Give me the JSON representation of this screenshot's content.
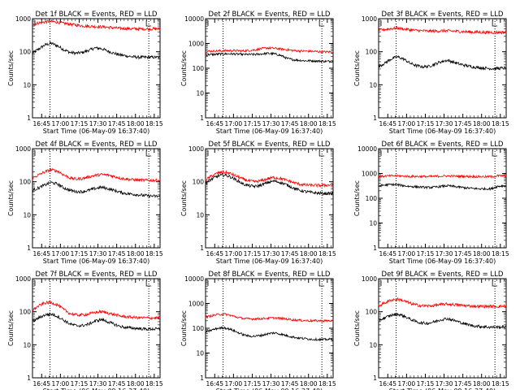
{
  "chart_data": {
    "type": "line",
    "xlabel": "Start Time (06-May-09 16:37:40)",
    "ylabel": "Counts/sec",
    "x_tick_labels": [
      "16:45",
      "17:00",
      "17:15",
      "17:30",
      "17:45",
      "18:00",
      "18:15"
    ],
    "x_tick_minutes": [
      7.33,
      22.33,
      37.33,
      52.33,
      67.33,
      82.33,
      97.33
    ],
    "xlim_minutes": [
      0,
      102
    ],
    "vertical_markers_minutes": [
      14,
      93
    ],
    "series_colors": {
      "Events": "#000000",
      "LLD": "#ff0000"
    },
    "panels": [
      {
        "title": "Det 1f BLACK = Events, RED = LLD",
        "y_tick_labels": [
          "1",
          "10",
          "100",
          "1000"
        ],
        "ylim": [
          1,
          1000
        ],
        "series": [
          {
            "name": "Events",
            "color": "#000000",
            "minutes": [
              0,
              5,
              10,
              15,
              20,
              25,
              30,
              35,
              40,
              45,
              50,
              55,
              60,
              65,
              70,
              75,
              80,
              85,
              90,
              95,
              100
            ],
            "values": [
              90,
              120,
              160,
              180,
              150,
              115,
              95,
              90,
              95,
              110,
              130,
              125,
              105,
              90,
              80,
              75,
              70,
              68,
              68,
              68,
              68
            ]
          },
          {
            "name": "LLD",
            "color": "#ff0000",
            "minutes": [
              0,
              5,
              10,
              15,
              20,
              25,
              30,
              35,
              40,
              45,
              50,
              55,
              60,
              65,
              70,
              75,
              80,
              85,
              90,
              95,
              100
            ],
            "values": [
              680,
              740,
              800,
              820,
              780,
              720,
              680,
              640,
              610,
              590,
              580,
              570,
              550,
              530,
              510,
              500,
              495,
              490,
              490,
              490,
              490
            ]
          }
        ]
      },
      {
        "title": "Det 2f BLACK = Events, RED = LLD",
        "y_tick_labels": [
          "1",
          "10",
          "100",
          "1000",
          "10000"
        ],
        "ylim": [
          1,
          10000
        ],
        "series": [
          {
            "name": "Events",
            "color": "#000000",
            "minutes": [
              0,
              5,
              10,
              15,
              20,
              25,
              30,
              35,
              40,
              45,
              50,
              55,
              60,
              65,
              70,
              75,
              80,
              85,
              90,
              95,
              100
            ],
            "values": [
              350,
              360,
              370,
              380,
              380,
              370,
              360,
              360,
              360,
              380,
              400,
              380,
              330,
              250,
              220,
              210,
              200,
              200,
              195,
              190,
              190
            ]
          },
          {
            "name": "LLD",
            "color": "#ff0000",
            "minutes": [
              0,
              5,
              10,
              15,
              20,
              25,
              30,
              35,
              40,
              45,
              50,
              55,
              60,
              65,
              70,
              75,
              80,
              85,
              90,
              95,
              100
            ],
            "values": [
              480,
              490,
              500,
              510,
              520,
              510,
              500,
              520,
              560,
              620,
              660,
              640,
              600,
              560,
              520,
              500,
              490,
              480,
              470,
              460,
              455
            ]
          }
        ]
      },
      {
        "title": "Det 3f BLACK = Events, RED = LLD",
        "y_tick_labels": [
          "1",
          "10",
          "100",
          "1000"
        ],
        "ylim": [
          1,
          1000
        ],
        "series": [
          {
            "name": "Events",
            "color": "#000000",
            "minutes": [
              0,
              5,
              10,
              15,
              20,
              25,
              30,
              35,
              40,
              45,
              50,
              55,
              60,
              65,
              70,
              75,
              80,
              85,
              90,
              95,
              100
            ],
            "values": [
              35,
              45,
              60,
              70,
              60,
              45,
              38,
              35,
              36,
              42,
              50,
              55,
              48,
              42,
              38,
              35,
              33,
              32,
              31,
              31,
              32
            ]
          },
          {
            "name": "LLD",
            "color": "#ff0000",
            "minutes": [
              0,
              5,
              10,
              15,
              20,
              25,
              30,
              35,
              40,
              45,
              50,
              55,
              60,
              65,
              70,
              75,
              80,
              85,
              90,
              95,
              100
            ],
            "values": [
              450,
              470,
              500,
              520,
              490,
              460,
              440,
              430,
              420,
              420,
              425,
              430,
              420,
              410,
              400,
              395,
              390,
              385,
              385,
              385,
              385
            ]
          }
        ]
      },
      {
        "title": "Det 4f BLACK = Events, RED = LLD",
        "y_tick_labels": [
          "1",
          "10",
          "100",
          "1000"
        ],
        "ylim": [
          1,
          1000
        ],
        "series": [
          {
            "name": "Events",
            "color": "#000000",
            "minutes": [
              0,
              5,
              10,
              15,
              20,
              25,
              30,
              35,
              40,
              45,
              50,
              55,
              60,
              65,
              70,
              75,
              80,
              85,
              90,
              95,
              100
            ],
            "values": [
              55,
              65,
              80,
              95,
              85,
              65,
              55,
              50,
              50,
              55,
              62,
              68,
              62,
              55,
              48,
              44,
              42,
              40,
              38,
              37,
              36
            ]
          },
          {
            "name": "LLD",
            "color": "#ff0000",
            "minutes": [
              0,
              5,
              10,
              15,
              20,
              25,
              30,
              35,
              40,
              45,
              50,
              55,
              60,
              65,
              70,
              75,
              80,
              85,
              90,
              95,
              100
            ],
            "values": [
              130,
              160,
              200,
              230,
              210,
              160,
              130,
              120,
              125,
              140,
              155,
              165,
              160,
              145,
              130,
              120,
              115,
              112,
              110,
              110,
              110
            ]
          }
        ]
      },
      {
        "title": "Det 5f BLACK = Events, RED = LLD",
        "y_tick_labels": [
          "1",
          "10",
          "100",
          "1000"
        ],
        "ylim": [
          1,
          1000
        ],
        "series": [
          {
            "name": "Events",
            "color": "#000000",
            "minutes": [
              0,
              5,
              10,
              15,
              20,
              25,
              30,
              35,
              40,
              45,
              50,
              55,
              60,
              65,
              70,
              75,
              80,
              85,
              90,
              95,
              100
            ],
            "values": [
              90,
              120,
              150,
              160,
              140,
              110,
              85,
              75,
              72,
              80,
              95,
              105,
              95,
              80,
              65,
              55,
              50,
              47,
              45,
              44,
              44
            ]
          },
          {
            "name": "LLD",
            "color": "#ff0000",
            "minutes": [
              0,
              5,
              10,
              15,
              20,
              25,
              30,
              35,
              40,
              45,
              50,
              55,
              60,
              65,
              70,
              75,
              80,
              85,
              90,
              95,
              100
            ],
            "values": [
              110,
              150,
              185,
              195,
              175,
              145,
              120,
              105,
              100,
              108,
              125,
              135,
              125,
              110,
              95,
              85,
              80,
              78,
              77,
              78,
              80
            ]
          }
        ]
      },
      {
        "title": "Det 6f BLACK = Events, RED = LLD",
        "y_tick_labels": [
          "1",
          "10",
          "100",
          "1000",
          "10000"
        ],
        "ylim": [
          1,
          10000
        ],
        "series": [
          {
            "name": "Events",
            "color": "#000000",
            "minutes": [
              0,
              5,
              10,
              15,
              20,
              25,
              30,
              35,
              40,
              45,
              50,
              55,
              60,
              65,
              70,
              75,
              80,
              85,
              90,
              95,
              100
            ],
            "values": [
              320,
              340,
              360,
              350,
              320,
              300,
              290,
              280,
              270,
              280,
              300,
              320,
              300,
              280,
              260,
              250,
              240,
              240,
              240,
              300,
              320
            ]
          },
          {
            "name": "LLD",
            "color": "#ff0000",
            "minutes": [
              0,
              5,
              10,
              15,
              20,
              25,
              30,
              35,
              40,
              45,
              50,
              55,
              60,
              65,
              70,
              75,
              80,
              85,
              90,
              95,
              100
            ],
            "values": [
              750,
              780,
              800,
              800,
              780,
              760,
              760,
              750,
              750,
              760,
              780,
              790,
              780,
              770,
              760,
              750,
              745,
              740,
              740,
              800,
              820
            ]
          }
        ]
      },
      {
        "title": "Det 7f BLACK = Events, RED = LLD",
        "y_tick_labels": [
          "1",
          "10",
          "100",
          "1000"
        ],
        "ylim": [
          1,
          1000
        ],
        "series": [
          {
            "name": "Events",
            "color": "#000000",
            "minutes": [
              0,
              5,
              10,
              15,
              20,
              25,
              30,
              35,
              40,
              45,
              50,
              55,
              60,
              65,
              70,
              75,
              80,
              85,
              90,
              95,
              100
            ],
            "values": [
              50,
              65,
              80,
              85,
              72,
              55,
              42,
              38,
              38,
              42,
              52,
              58,
              50,
              42,
              36,
              33,
              32,
              31,
              30,
              30,
              30
            ]
          },
          {
            "name": "LLD",
            "color": "#ff0000",
            "minutes": [
              0,
              5,
              10,
              15,
              20,
              25,
              30,
              35,
              40,
              45,
              50,
              55,
              60,
              65,
              70,
              75,
              80,
              85,
              90,
              95,
              100
            ],
            "values": [
              110,
              150,
              185,
              190,
              160,
              115,
              88,
              80,
              80,
              85,
              95,
              100,
              92,
              82,
              74,
              70,
              68,
              66,
              65,
              65,
              65
            ]
          }
        ]
      },
      {
        "title": "Det 8f BLACK = Events, RED = LLD",
        "y_tick_labels": [
          "1",
          "10",
          "100",
          "1000",
          "10000"
        ],
        "ylim": [
          1,
          10000
        ],
        "series": [
          {
            "name": "Events",
            "color": "#000000",
            "minutes": [
              0,
              5,
              10,
              15,
              20,
              25,
              30,
              35,
              40,
              45,
              50,
              55,
              60,
              65,
              70,
              75,
              80,
              85,
              90,
              95,
              100
            ],
            "values": [
              70,
              85,
              100,
              105,
              90,
              70,
              55,
              48,
              48,
              52,
              60,
              65,
              58,
              50,
              44,
              40,
              38,
              36,
              35,
              35,
              36
            ]
          },
          {
            "name": "LLD",
            "color": "#ff0000",
            "minutes": [
              0,
              5,
              10,
              15,
              20,
              25,
              30,
              35,
              40,
              45,
              50,
              55,
              60,
              65,
              70,
              75,
              80,
              85,
              90,
              95,
              100
            ],
            "values": [
              280,
              320,
              360,
              370,
              330,
              280,
              250,
              240,
              240,
              245,
              255,
              260,
              250,
              235,
              220,
              210,
              205,
              200,
              200,
              200,
              200
            ]
          }
        ]
      },
      {
        "title": "Det 9f BLACK = Events, RED = LLD",
        "y_tick_labels": [
          "1",
          "10",
          "100",
          "1000"
        ],
        "ylim": [
          1,
          1000
        ],
        "series": [
          {
            "name": "Events",
            "color": "#000000",
            "minutes": [
              0,
              5,
              10,
              15,
              20,
              25,
              30,
              35,
              40,
              45,
              50,
              55,
              60,
              65,
              70,
              75,
              80,
              85,
              90,
              95,
              100
            ],
            "values": [
              55,
              65,
              78,
              85,
              75,
              60,
              50,
              45,
              45,
              50,
              58,
              62,
              55,
              48,
              42,
              38,
              36,
              35,
              34,
              34,
              35
            ]
          },
          {
            "name": "LLD",
            "color": "#ff0000",
            "minutes": [
              0,
              5,
              10,
              15,
              20,
              25,
              30,
              35,
              40,
              45,
              50,
              55,
              60,
              65,
              70,
              75,
              80,
              85,
              90,
              95,
              100
            ],
            "values": [
              150,
              185,
              225,
              240,
              215,
              180,
              160,
              150,
              150,
              155,
              165,
              170,
              165,
              158,
              152,
              148,
              145,
              144,
              145,
              145,
              146
            ]
          }
        ]
      }
    ]
  }
}
